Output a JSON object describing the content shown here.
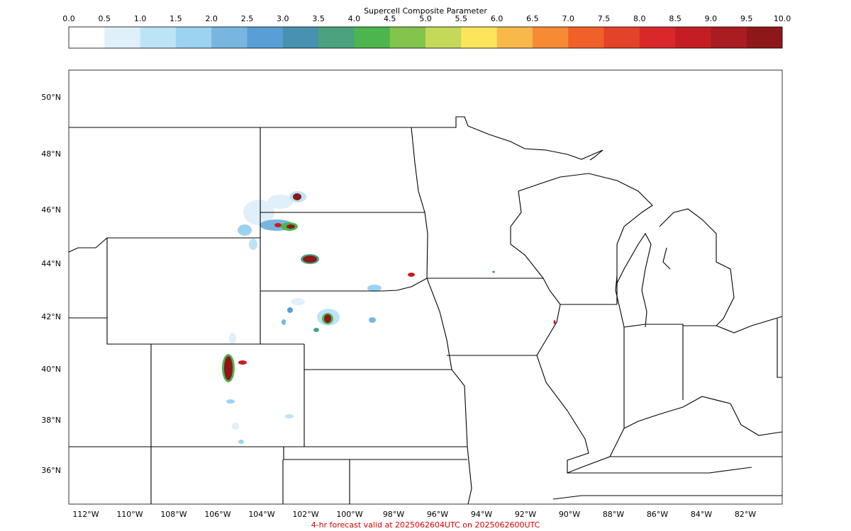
{
  "colorbar": {
    "title": "Supercell Composite Parameter",
    "ticks": [
      "0.0",
      "0.5",
      "1.0",
      "1.5",
      "2.0",
      "2.5",
      "3.0",
      "3.5",
      "4.0",
      "4.5",
      "5.0",
      "5.5",
      "6.0",
      "6.5",
      "7.0",
      "7.5",
      "8.0",
      "8.5",
      "9.0",
      "9.5",
      "10.0"
    ],
    "colors": [
      "#ffffff",
      "#dff0fb",
      "#bde3f6",
      "#9bd3f1",
      "#78b6e0",
      "#5a9ed6",
      "#4891b0",
      "#4aa37e",
      "#4db54e",
      "#82c44c",
      "#c4d957",
      "#fde55b",
      "#f9b94a",
      "#f68b33",
      "#f06129",
      "#e34328",
      "#d9272a",
      "#c41e24",
      "#a91c22",
      "#8e1719"
    ]
  },
  "lat_labels": [
    "50°N",
    "48°N",
    "46°N",
    "44°N",
    "42°N",
    "40°N",
    "38°N",
    "36°N"
  ],
  "lon_labels": [
    "112°W",
    "110°W",
    "108°W",
    "106°W",
    "104°W",
    "102°W",
    "100°W",
    "98°W",
    "96°W",
    "94°W",
    "92°W",
    "90°W",
    "88°W",
    "86°W",
    "84°W",
    "82°W"
  ],
  "footer": "4-hr forecast valid at 2025062604UTC on 2025062600UTC"
}
